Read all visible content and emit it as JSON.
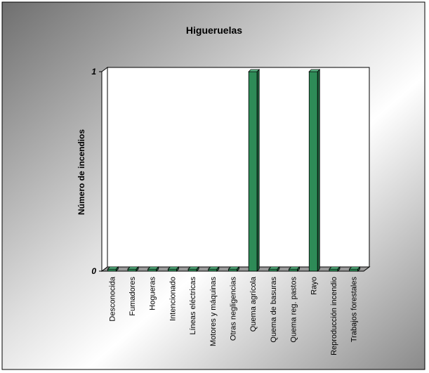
{
  "chart_data": {
    "type": "bar",
    "title": "Higueruelas",
    "xlabel": "",
    "ylabel": "Número de incendios",
    "ylim": [
      0,
      1
    ],
    "yticks": [
      0,
      1
    ],
    "grid": false,
    "legend": "none",
    "style": "3d",
    "bar_color": "#2e8b57",
    "categories": [
      "Desconocida",
      "Fumadores",
      "Hogueras",
      "Intencionado",
      "Líneas eléctricas",
      "Motores y máquinas",
      "Otras negligencias",
      "Quema agrícola",
      "Quema de basuras",
      "Quema reg. pastos",
      "Rayo",
      "Reproducción incendio",
      "Trabajos forestales"
    ],
    "values": [
      0,
      0,
      0,
      0,
      0,
      0,
      0,
      1,
      0,
      0,
      1,
      0,
      0
    ]
  }
}
